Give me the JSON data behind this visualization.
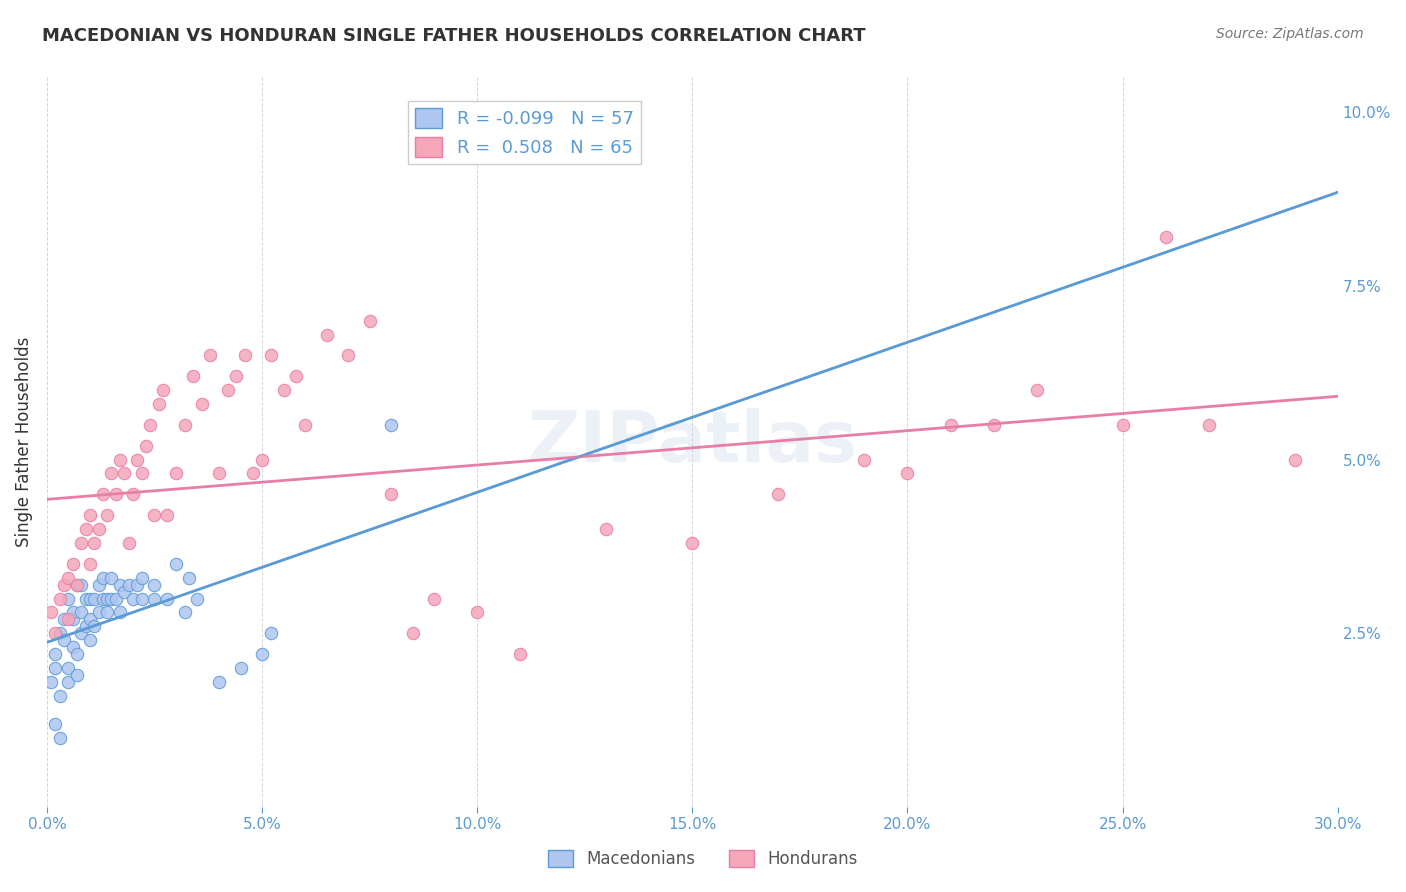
{
  "title": "MACEDONIAN VS HONDURAN SINGLE FATHER HOUSEHOLDS CORRELATION CHART",
  "source": "Source: ZipAtlas.com",
  "ylabel": "Single Father Households",
  "xlabel": "",
  "xlim": [
    0.0,
    0.3
  ],
  "ylim": [
    0.0,
    0.105
  ],
  "xtick_labels": [
    "0.0%",
    "5.0%",
    "10.0%",
    "15.0%",
    "20.0%",
    "25.0%",
    "30.0%"
  ],
  "xtick_vals": [
    0.0,
    0.05,
    0.1,
    0.15,
    0.2,
    0.25,
    0.3
  ],
  "ytick_labels_right": [
    "",
    "2.5%",
    "5.0%",
    "7.5%",
    "10.0%"
  ],
  "ytick_vals_right": [
    0.0,
    0.025,
    0.05,
    0.075,
    0.1
  ],
  "mac_color": "#aec6f0",
  "hon_color": "#f4a7b9",
  "mac_line_color": "#5b9bd5",
  "hon_line_color": "#e87da8",
  "mac_R": -0.099,
  "mac_N": 57,
  "hon_R": 0.508,
  "hon_N": 65,
  "watermark": "ZIPatlas",
  "background_color": "#ffffff",
  "grid_color": "#cccccc",
  "mac_scatter_x": [
    0.001,
    0.002,
    0.002,
    0.003,
    0.003,
    0.004,
    0.004,
    0.005,
    0.005,
    0.005,
    0.006,
    0.006,
    0.006,
    0.007,
    0.007,
    0.007,
    0.008,
    0.008,
    0.008,
    0.009,
    0.009,
    0.01,
    0.01,
    0.01,
    0.011,
    0.011,
    0.012,
    0.012,
    0.013,
    0.013,
    0.014,
    0.014,
    0.015,
    0.015,
    0.016,
    0.017,
    0.017,
    0.018,
    0.019,
    0.02,
    0.021,
    0.022,
    0.022,
    0.025,
    0.025,
    0.028,
    0.03,
    0.032,
    0.033,
    0.035,
    0.04,
    0.045,
    0.05,
    0.052,
    0.08,
    0.003,
    0.002
  ],
  "mac_scatter_y": [
    0.018,
    0.02,
    0.022,
    0.016,
    0.025,
    0.024,
    0.027,
    0.02,
    0.018,
    0.03,
    0.023,
    0.027,
    0.028,
    0.019,
    0.022,
    0.032,
    0.025,
    0.028,
    0.032,
    0.026,
    0.03,
    0.024,
    0.027,
    0.03,
    0.026,
    0.03,
    0.028,
    0.032,
    0.03,
    0.033,
    0.03,
    0.028,
    0.03,
    0.033,
    0.03,
    0.028,
    0.032,
    0.031,
    0.032,
    0.03,
    0.032,
    0.03,
    0.033,
    0.032,
    0.03,
    0.03,
    0.035,
    0.028,
    0.033,
    0.03,
    0.018,
    0.02,
    0.022,
    0.025,
    0.055,
    0.01,
    0.012
  ],
  "hon_scatter_x": [
    0.001,
    0.002,
    0.003,
    0.004,
    0.005,
    0.005,
    0.006,
    0.007,
    0.008,
    0.009,
    0.01,
    0.01,
    0.011,
    0.012,
    0.013,
    0.014,
    0.015,
    0.016,
    0.017,
    0.018,
    0.019,
    0.02,
    0.021,
    0.022,
    0.023,
    0.024,
    0.025,
    0.026,
    0.027,
    0.028,
    0.03,
    0.032,
    0.034,
    0.036,
    0.038,
    0.04,
    0.042,
    0.044,
    0.046,
    0.048,
    0.05,
    0.052,
    0.055,
    0.058,
    0.06,
    0.065,
    0.07,
    0.075,
    0.08,
    0.085,
    0.09,
    0.1,
    0.11,
    0.13,
    0.15,
    0.17,
    0.19,
    0.21,
    0.23,
    0.25,
    0.27,
    0.29,
    0.2,
    0.22,
    0.26
  ],
  "hon_scatter_y": [
    0.028,
    0.025,
    0.03,
    0.032,
    0.027,
    0.033,
    0.035,
    0.032,
    0.038,
    0.04,
    0.035,
    0.042,
    0.038,
    0.04,
    0.045,
    0.042,
    0.048,
    0.045,
    0.05,
    0.048,
    0.038,
    0.045,
    0.05,
    0.048,
    0.052,
    0.055,
    0.042,
    0.058,
    0.06,
    0.042,
    0.048,
    0.055,
    0.062,
    0.058,
    0.065,
    0.048,
    0.06,
    0.062,
    0.065,
    0.048,
    0.05,
    0.065,
    0.06,
    0.062,
    0.055,
    0.068,
    0.065,
    0.07,
    0.045,
    0.025,
    0.03,
    0.028,
    0.022,
    0.04,
    0.038,
    0.045,
    0.05,
    0.055,
    0.06,
    0.055,
    0.055,
    0.05,
    0.048,
    0.055,
    0.082
  ]
}
